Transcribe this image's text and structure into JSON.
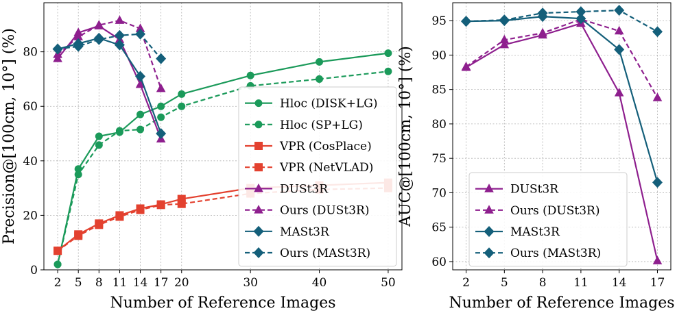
{
  "chart_data": [
    {
      "type": "line",
      "title": "",
      "xlabel": "Number of Reference Images",
      "ylabel": "Precision@[100cm, 10°] (%)",
      "xlim": [
        0,
        52
      ],
      "ylim": [
        0,
        98
      ],
      "xticks": [
        2,
        5,
        8,
        11,
        14,
        17,
        20,
        30,
        40,
        50
      ],
      "yticks": [
        0,
        20,
        40,
        60,
        80
      ],
      "grid": true,
      "legend_position": "bottom-right",
      "series": [
        {
          "name": "Hloc (DISK+LG)",
          "color": "#1b9a5a",
          "dashed": false,
          "marker": "circle",
          "x": [
            2,
            5,
            8,
            11,
            14,
            17,
            20,
            30,
            40,
            50
          ],
          "y": [
            2,
            37,
            49,
            50.5,
            57,
            60,
            64.5,
            71.3,
            76.3,
            79.5
          ]
        },
        {
          "name": "Hloc (SP+LG)",
          "color": "#1b9a5a",
          "dashed": true,
          "marker": "circle",
          "x": [
            2,
            5,
            8,
            11,
            14,
            17,
            20,
            30,
            40,
            50
          ],
          "y": [
            2,
            35,
            45.8,
            51,
            51.5,
            56,
            60,
            67.5,
            70,
            72.8
          ]
        },
        {
          "name": "VPR (CosPlace)",
          "color": "#e3412f",
          "dashed": false,
          "marker": "square",
          "x": [
            2,
            5,
            8,
            11,
            14,
            17,
            20,
            30,
            40,
            50
          ],
          "y": [
            7,
            13,
            17,
            20,
            22.5,
            24,
            26,
            30,
            31,
            32
          ]
        },
        {
          "name": "VPR (NetVLAD)",
          "color": "#e3412f",
          "dashed": true,
          "marker": "square",
          "x": [
            2,
            5,
            8,
            11,
            14,
            17,
            20,
            30,
            40,
            50
          ],
          "y": [
            7,
            12.5,
            16.5,
            19.5,
            22,
            23.8,
            24.2,
            28,
            29.5,
            30
          ]
        },
        {
          "name": "DUSt3R",
          "color": "#8e1f8e",
          "dashed": false,
          "marker": "triangle",
          "x": [
            2,
            5,
            8,
            11,
            14,
            17
          ],
          "y": [
            77.5,
            87,
            89.5,
            84.5,
            68,
            48
          ]
        },
        {
          "name": "Ours (DUSt3R)",
          "color": "#8e1f8e",
          "dashed": true,
          "marker": "triangle",
          "x": [
            2,
            5,
            8,
            11,
            14,
            17
          ],
          "y": [
            79,
            85.5,
            89.8,
            91.5,
            88.5,
            66.5
          ]
        },
        {
          "name": "MASt3R",
          "color": "#145f7a",
          "dashed": false,
          "marker": "diamond",
          "x": [
            2,
            5,
            8,
            11,
            14,
            17
          ],
          "y": [
            81,
            83,
            85,
            82.5,
            71,
            50
          ]
        },
        {
          "name": "Ours (MASt3R)",
          "color": "#145f7a",
          "dashed": true,
          "marker": "diamond",
          "x": [
            2,
            5,
            8,
            11,
            14,
            17
          ],
          "y": [
            81,
            82,
            84.5,
            86,
            86.5,
            77.5
          ]
        }
      ]
    },
    {
      "type": "line",
      "title": "",
      "xlabel": "Number of Reference Images",
      "ylabel": "AUC@[100cm, 10°] (%)",
      "xlim": [
        0.95,
        18.05
      ],
      "ylim": [
        58.8,
        97.6
      ],
      "xticks": [
        2,
        5,
        8,
        11,
        14,
        17
      ],
      "yticks": [
        60,
        65,
        70,
        75,
        80,
        85,
        90,
        95
      ],
      "grid": true,
      "legend_position": "bottom-left",
      "series": [
        {
          "name": "DUSt3R",
          "color": "#8e1f8e",
          "dashed": false,
          "marker": "triangle",
          "x": [
            2,
            5,
            8,
            11,
            14,
            17
          ],
          "y": [
            88.2,
            91.5,
            92.9,
            94.6,
            84.5,
            60.1
          ]
        },
        {
          "name": "Ours (DUSt3R)",
          "color": "#8e1f8e",
          "dashed": true,
          "marker": "triangle",
          "x": [
            2,
            5,
            8,
            11,
            14,
            17
          ],
          "y": [
            88.3,
            92.2,
            93.2,
            95.2,
            93.5,
            83.8
          ]
        },
        {
          "name": "MASt3R",
          "color": "#145f7a",
          "dashed": false,
          "marker": "diamond",
          "x": [
            2,
            5,
            8,
            11,
            14,
            17
          ],
          "y": [
            94.9,
            95.0,
            95.6,
            95.3,
            90.8,
            71.5
          ]
        },
        {
          "name": "Ours (MASt3R)",
          "color": "#145f7a",
          "dashed": true,
          "marker": "diamond",
          "x": [
            2,
            5,
            8,
            11,
            14,
            17
          ],
          "y": [
            94.9,
            95.1,
            96.1,
            96.3,
            96.5,
            93.4
          ]
        }
      ]
    }
  ]
}
